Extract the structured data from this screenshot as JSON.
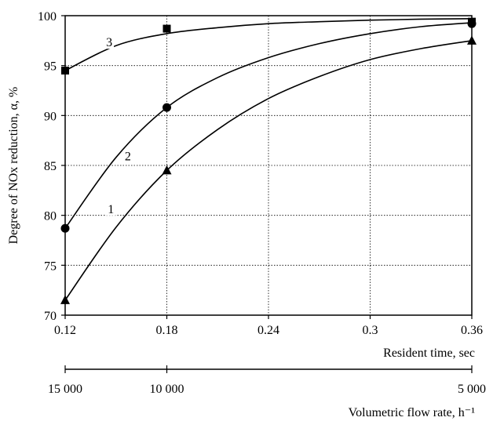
{
  "chart_data": {
    "type": "scatter",
    "title": "",
    "ylabel": "Degree of NOx reduction, α, %",
    "xlabel": "Resident time, sec",
    "x2label": "Volumetric flow rate, h⁻¹",
    "xlim": [
      0.12,
      0.36
    ],
    "ylim": [
      70,
      100
    ],
    "grid": true,
    "x_ticks": [
      0.12,
      0.18,
      0.24,
      0.3,
      0.36
    ],
    "x_tick_labels": [
      "0.12",
      "0.18",
      "0.24",
      "0.3",
      "0.36"
    ],
    "y_ticks": [
      70,
      75,
      80,
      85,
      90,
      95,
      100
    ],
    "y_tick_labels": [
      "70",
      "75",
      "80",
      "85",
      "90",
      "95",
      "100"
    ],
    "x2_ticks": [
      {
        "at": 0.12,
        "label": "15 000"
      },
      {
        "at": 0.18,
        "label": "10 000"
      },
      {
        "at": 0.36,
        "label": "5 000"
      }
    ],
    "series": [
      {
        "label": "1",
        "marker": "triangle",
        "x": [
          0.12,
          0.18,
          0.36
        ],
        "values": [
          71.5,
          84.5,
          97.5
        ],
        "curve": [
          [
            0.12,
            71.5
          ],
          [
            0.15,
            78.8
          ],
          [
            0.18,
            84.5
          ],
          [
            0.21,
            88.6
          ],
          [
            0.24,
            91.7
          ],
          [
            0.27,
            93.9
          ],
          [
            0.3,
            95.6
          ],
          [
            0.33,
            96.7
          ],
          [
            0.36,
            97.5
          ]
        ],
        "label_at": [
          0.147,
          80.3
        ]
      },
      {
        "label": "2",
        "marker": "circle",
        "x": [
          0.12,
          0.18,
          0.36
        ],
        "values": [
          78.7,
          90.8,
          99.2
        ],
        "curve": [
          [
            0.12,
            78.7
          ],
          [
            0.15,
            85.8
          ],
          [
            0.18,
            90.8
          ],
          [
            0.21,
            93.8
          ],
          [
            0.24,
            95.8
          ],
          [
            0.27,
            97.2
          ],
          [
            0.3,
            98.2
          ],
          [
            0.33,
            98.9
          ],
          [
            0.36,
            99.3
          ]
        ],
        "label_at": [
          0.157,
          85.6
        ]
      },
      {
        "label": "3",
        "marker": "square",
        "x": [
          0.12,
          0.18,
          0.36
        ],
        "values": [
          94.5,
          98.7,
          99.4
        ],
        "curve": [
          [
            0.12,
            94.5
          ],
          [
            0.15,
            97.0
          ],
          [
            0.18,
            98.2
          ],
          [
            0.21,
            98.8
          ],
          [
            0.24,
            99.2
          ],
          [
            0.27,
            99.4
          ],
          [
            0.3,
            99.55
          ],
          [
            0.33,
            99.65
          ],
          [
            0.36,
            99.7
          ]
        ],
        "label_at": [
          0.146,
          97.0
        ]
      }
    ]
  }
}
